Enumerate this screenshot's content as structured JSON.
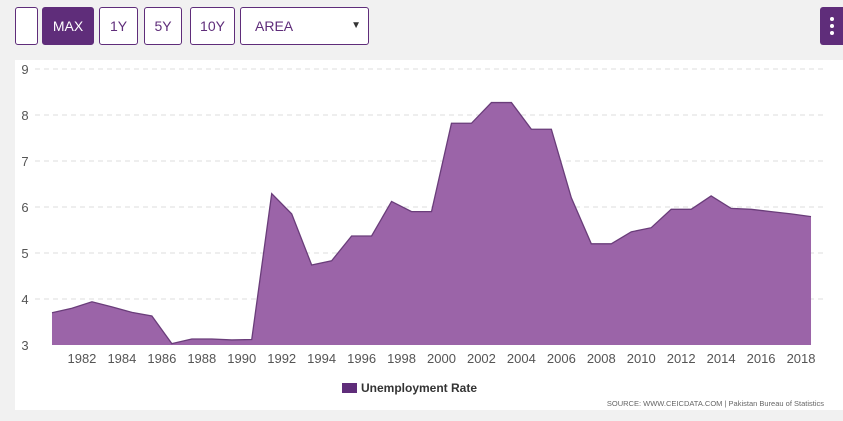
{
  "toolbar": {
    "range_buttons": [
      "MAX",
      "1Y",
      "5Y",
      "10Y"
    ],
    "active_range": "MAX",
    "chart_type_select": "AREA"
  },
  "colors": {
    "accent": "#5f2d7a",
    "area_fill": "#9b64a8",
    "area_line": "#6a3d7a"
  },
  "source_text": "SOURCE: WWW.CEICDATA.COM | Pakistan Bureau of Statistics",
  "chart_data": {
    "type": "area",
    "title": "",
    "xlabel": "",
    "ylabel": "",
    "ylim": [
      3,
      9
    ],
    "yticks": [
      3,
      4,
      5,
      6,
      7,
      8,
      9
    ],
    "xlim": [
      1980.4,
      2019.0
    ],
    "xticks": [
      "1982",
      "1984",
      "1986",
      "1988",
      "1990",
      "1992",
      "1994",
      "1996",
      "1998",
      "2000",
      "2002",
      "2004",
      "2006",
      "2008",
      "2010",
      "2012",
      "2014",
      "2016",
      "2018"
    ],
    "grid": true,
    "legend_position": "bottom",
    "series": [
      {
        "name": "Unemployment Rate",
        "points": [
          [
            1980.5,
            3.7
          ],
          [
            1981.5,
            3.8
          ],
          [
            1982.5,
            3.94
          ],
          [
            1983.5,
            3.83
          ],
          [
            1984.5,
            3.71
          ],
          [
            1985.5,
            3.63
          ],
          [
            1986.5,
            3.03
          ],
          [
            1987.5,
            3.13
          ],
          [
            1988.5,
            3.13
          ],
          [
            1989.5,
            3.11
          ],
          [
            1990.5,
            3.12
          ],
          [
            1991.5,
            6.29
          ],
          [
            1992.5,
            5.85
          ],
          [
            1993.5,
            4.74
          ],
          [
            1994.5,
            4.83
          ],
          [
            1995.5,
            5.37
          ],
          [
            1996.5,
            5.37
          ],
          [
            1997.5,
            6.12
          ],
          [
            1998.5,
            5.9
          ],
          [
            1999.5,
            5.9
          ],
          [
            2000.5,
            7.82
          ],
          [
            2001.5,
            7.82
          ],
          [
            2002.5,
            8.27
          ],
          [
            2003.5,
            8.27
          ],
          [
            2004.5,
            7.69
          ],
          [
            2005.5,
            7.69
          ],
          [
            2006.5,
            6.2
          ],
          [
            2007.5,
            5.2
          ],
          [
            2008.5,
            5.2
          ],
          [
            2009.5,
            5.46
          ],
          [
            2010.5,
            5.55
          ],
          [
            2011.5,
            5.95
          ],
          [
            2012.5,
            5.95
          ],
          [
            2013.5,
            6.24
          ],
          [
            2014.5,
            5.97
          ],
          [
            2015.5,
            5.95
          ],
          [
            2016.5,
            5.9
          ],
          [
            2017.5,
            5.85
          ],
          [
            2018.5,
            5.79
          ]
        ]
      }
    ]
  }
}
